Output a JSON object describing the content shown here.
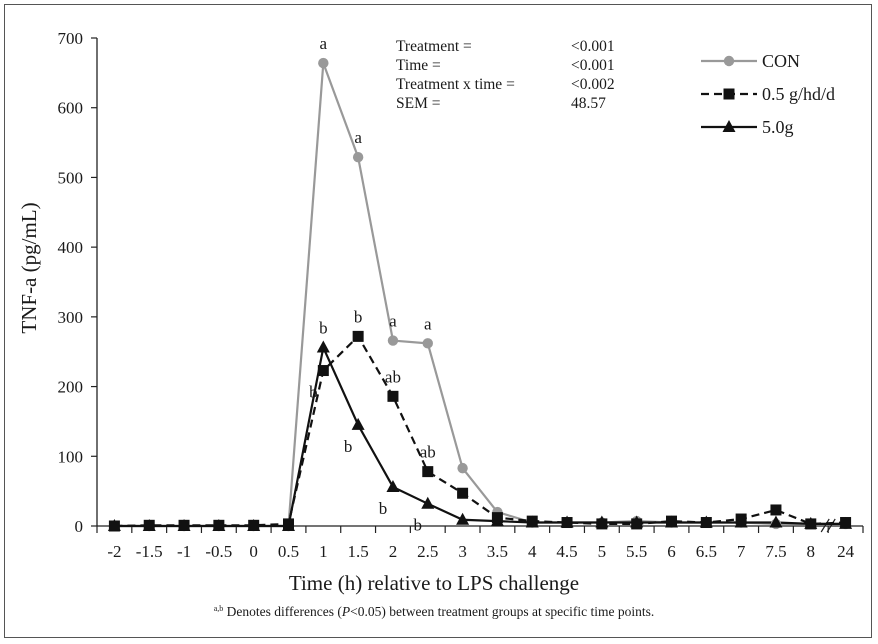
{
  "chart_data": {
    "type": "line",
    "xlabel": "Time (h) relative to LPS challenge",
    "ylabel": "TNF-a (pg/mL)",
    "ylim": [
      0,
      700
    ],
    "y_ticks": [
      0,
      100,
      200,
      300,
      400,
      500,
      600,
      700
    ],
    "categories": [
      "-2",
      "-1.5",
      "-1",
      "-0.5",
      "0",
      "0.5",
      "1",
      "1.5",
      "2",
      "2.5",
      "3",
      "3.5",
      "4",
      "4.5",
      "5",
      "5.5",
      "6",
      "6.5",
      "7",
      "7.5",
      "8",
      "24"
    ],
    "legend_position": "top-right",
    "series": [
      {
        "name": "CON",
        "color": "#999999",
        "line_style": "solid",
        "marker": "circle",
        "values": [
          0,
          0,
          0,
          0,
          0,
          0,
          664,
          529,
          266,
          262,
          83,
          20,
          5,
          5,
          5,
          7,
          5,
          5,
          5,
          3,
          3,
          3
        ]
      },
      {
        "name": "0.5 g/hd/d",
        "color": "#111111",
        "line_style": "dashed",
        "marker": "square",
        "values": [
          0,
          1,
          1,
          1,
          1,
          3,
          223,
          272,
          186,
          78,
          47,
          12,
          7,
          5,
          3,
          3,
          7,
          5,
          10,
          23,
          3,
          5
        ]
      },
      {
        "name": "5.0g",
        "color": "#111111",
        "line_style": "solid",
        "marker": "triangle",
        "values": [
          0,
          0,
          0,
          0,
          0,
          0,
          256,
          145,
          56,
          32,
          9,
          7,
          5,
          5,
          5,
          5,
          5,
          5,
          5,
          5,
          3,
          3
        ]
      }
    ],
    "annotations": [
      {
        "text": "a",
        "series": 0,
        "x": "1"
      },
      {
        "text": "a",
        "series": 0,
        "x": "1.5"
      },
      {
        "text": "a",
        "series": 0,
        "x": "2"
      },
      {
        "text": "a",
        "series": 0,
        "x": "2.5"
      },
      {
        "text": "b",
        "series": 2,
        "x": "1",
        "pos": "above"
      },
      {
        "text": "b",
        "series": 1,
        "x": "1",
        "pos": "below"
      },
      {
        "text": "b",
        "series": 1,
        "x": "1.5"
      },
      {
        "text": "ab",
        "series": 1,
        "x": "2"
      },
      {
        "text": "ab",
        "series": 1,
        "x": "2.5"
      },
      {
        "text": "b",
        "series": 2,
        "x": "1.5",
        "pos": "below"
      },
      {
        "text": "b",
        "series": 2,
        "x": "2",
        "pos": "below"
      },
      {
        "text": "b",
        "series": 2,
        "x": "2.5",
        "pos": "below"
      }
    ],
    "stats": [
      {
        "label": "Treatment =",
        "value": "<0.001"
      },
      {
        "label": "Time =",
        "value": "<0.001"
      },
      {
        "label": "Treatment x time =",
        "value": "<0.002"
      },
      {
        "label": "SEM =",
        "value": "48.57"
      }
    ],
    "footnote": {
      "superscript": "a,b",
      "before": " Denotes differences (",
      "italic": "P",
      "after": "<0.05) between treatment groups at specific time points."
    }
  }
}
